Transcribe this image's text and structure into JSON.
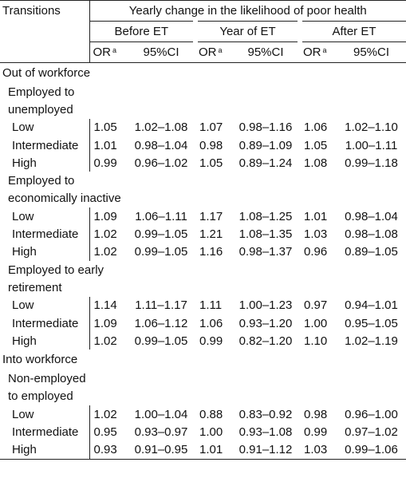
{
  "header": {
    "transitions": "Transitions",
    "span_title": "Yearly change in the likelihood of poor health",
    "periods": [
      "Before ET",
      "Year of ET",
      "After ET"
    ],
    "or_label": "OR",
    "or_sup": "a",
    "ci_label": "95%CI"
  },
  "sections": [
    {
      "title": "Out of workforce",
      "groups": [
        {
          "label_lines": [
            "Employed to",
            "unemployed"
          ],
          "rows": [
            {
              "level": "Low",
              "values": [
                "1.05",
                "1.02–1.08",
                "1.07",
                "0.98–1.16",
                "1.06",
                "1.02–1.10"
              ]
            },
            {
              "level": "Intermediate",
              "values": [
                "1.01",
                "0.98–1.04",
                "0.98",
                "0.89–1.09",
                "1.05",
                "1.00–1.11"
              ]
            },
            {
              "level": "High",
              "values": [
                "0.99",
                "0.96–1.02",
                "1.05",
                "0.89–1.24",
                "1.08",
                "0.99–1.18"
              ]
            }
          ]
        },
        {
          "label_lines": [
            "Employed to",
            "economically inactive"
          ],
          "rows": [
            {
              "level": "Low",
              "values": [
                "1.09",
                "1.06–1.11",
                "1.17",
                "1.08–1.25",
                "1.01",
                "0.98–1.04"
              ]
            },
            {
              "level": "Intermediate",
              "values": [
                "1.02",
                "0.99–1.05",
                "1.21",
                "1.08–1.35",
                "1.03",
                "0.98–1.08"
              ]
            },
            {
              "level": "High",
              "values": [
                "1.02",
                "0.99–1.05",
                "1.16",
                "0.98–1.37",
                "0.96",
                "0.89–1.05"
              ]
            }
          ]
        },
        {
          "label_lines": [
            "Employed to early",
            "retirement"
          ],
          "rows": [
            {
              "level": "Low",
              "values": [
                "1.14",
                "1.11–1.17",
                "1.11",
                "1.00–1.23",
                "0.97",
                "0.94–1.01"
              ]
            },
            {
              "level": "Intermediate",
              "values": [
                "1.09",
                "1.06–1.12",
                "1.06",
                "0.93–1.20",
                "1.00",
                "0.95–1.05"
              ]
            },
            {
              "level": "High",
              "values": [
                "1.02",
                "0.99–1.05",
                "0.99",
                "0.82–1.20",
                "1.10",
                "1.02–1.19"
              ]
            }
          ]
        }
      ]
    },
    {
      "title": "Into workforce",
      "groups": [
        {
          "label_lines": [
            "Non-employed",
            "to employed"
          ],
          "rows": [
            {
              "level": "Low",
              "values": [
                "1.02",
                "1.00–1.04",
                "0.88",
                "0.83–0.92",
                "0.98",
                "0.96–1.00"
              ]
            },
            {
              "level": "Intermediate",
              "values": [
                "0.95",
                "0.93–0.97",
                "1.00",
                "0.93–1.08",
                "0.99",
                "0.97–1.02"
              ]
            },
            {
              "level": "High",
              "values": [
                "0.93",
                "0.91–0.95",
                "1.01",
                "0.91–1.12",
                "1.03",
                "0.99–1.06"
              ]
            }
          ]
        }
      ]
    }
  ]
}
